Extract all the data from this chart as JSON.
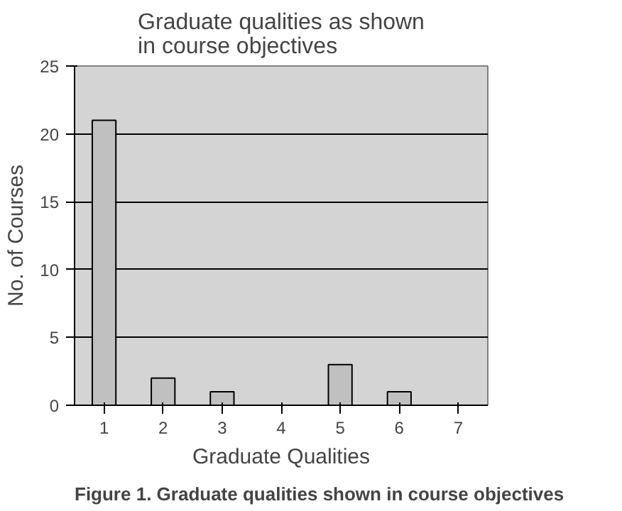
{
  "chart_data": {
    "type": "bar",
    "title": "Graduate qualities as shown in course objectives",
    "xlabel": "Graduate Qualities",
    "ylabel": "No. of Courses",
    "categories": [
      "1",
      "2",
      "3",
      "4",
      "5",
      "6",
      "7"
    ],
    "values": [
      21,
      2,
      1,
      0,
      3,
      1,
      0
    ],
    "color": "#c0c0c0",
    "ylim": [
      0,
      25
    ],
    "yticks": [
      0,
      5,
      10,
      15,
      20,
      25
    ],
    "grid": "y",
    "annotations": [
      "Figure 1. Graduate qualities shown in course objectives"
    ]
  }
}
